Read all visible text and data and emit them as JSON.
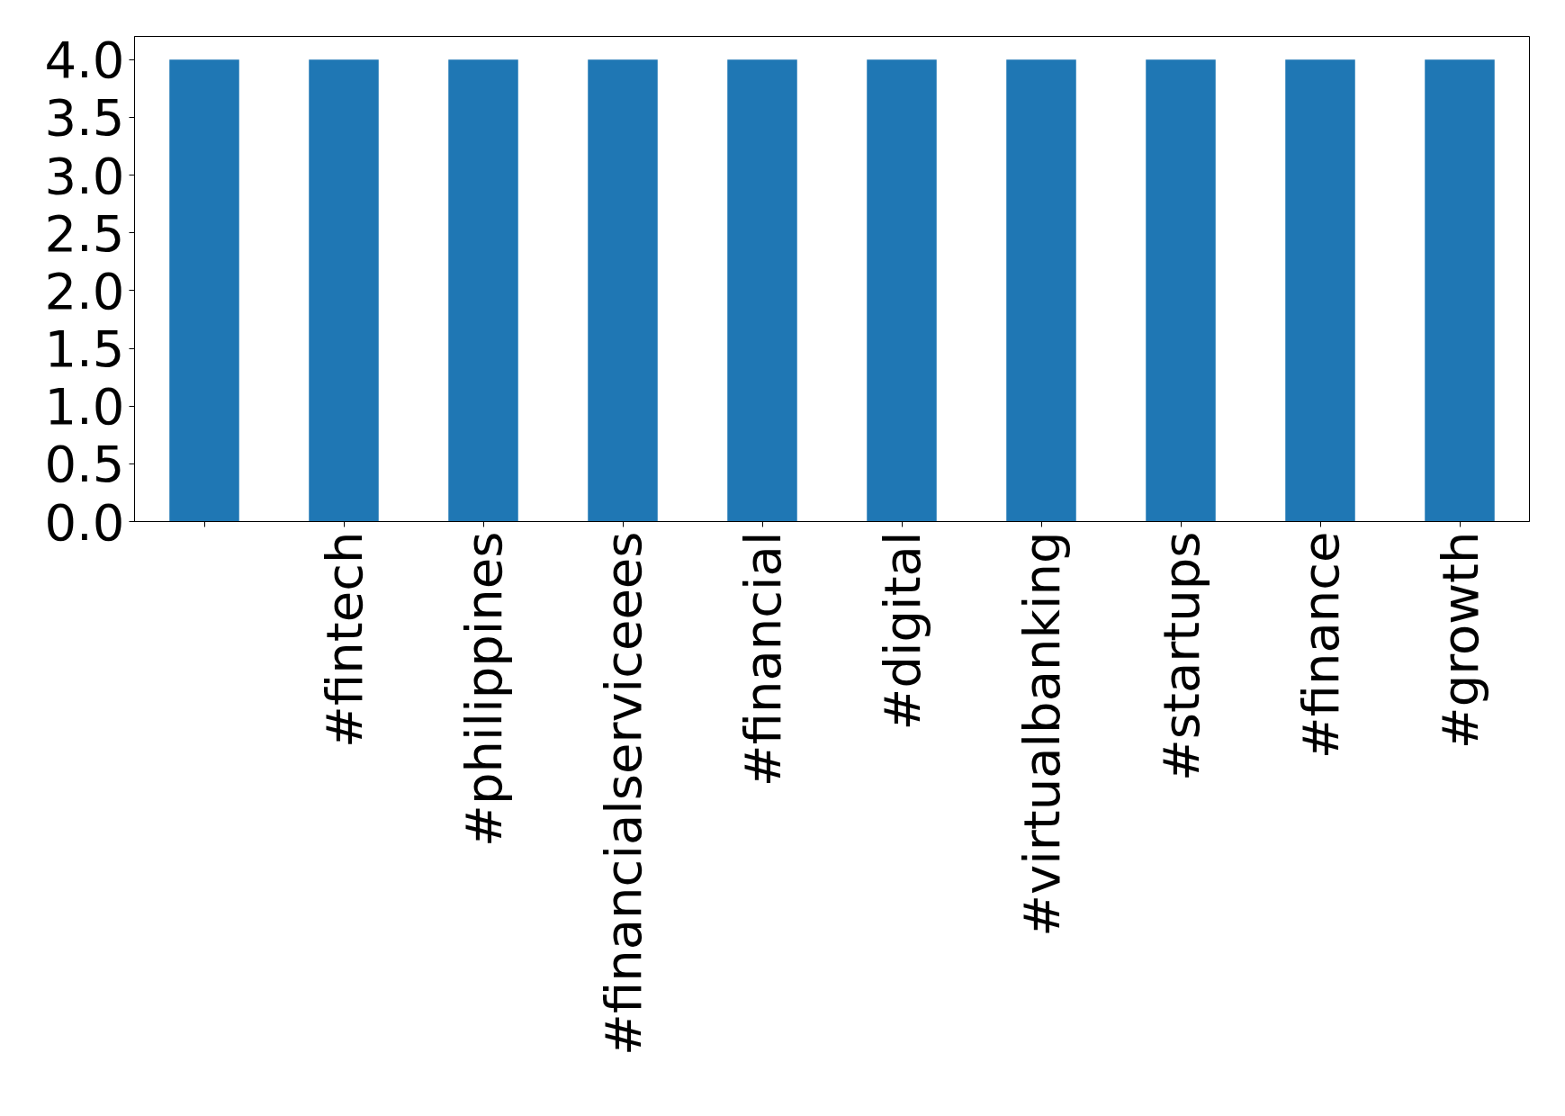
{
  "chart_data": {
    "type": "bar",
    "categories": [
      null,
      "#fintech",
      "#philippines",
      "#financialserviceees",
      "#financial",
      "#digital",
      "#virtualbanking",
      "#startups",
      "#finance",
      "#growth"
    ],
    "values": [
      4,
      4,
      4,
      4,
      4,
      4,
      4,
      4,
      4,
      4
    ],
    "color": "#1f77b4",
    "ylim": [
      0,
      4.2
    ],
    "yticks": [
      {
        "value": 0,
        "label": "0.0"
      },
      {
        "value": 0.5,
        "label": "0.5"
      },
      {
        "value": 1,
        "label": "1.0"
      },
      {
        "value": 1.5,
        "label": "1.5"
      },
      {
        "value": 2,
        "label": "2.0"
      },
      {
        "value": 2.5,
        "label": "2.5"
      },
      {
        "value": 3,
        "label": "3.0"
      },
      {
        "value": 3.5,
        "label": "3.5"
      },
      {
        "value": 4,
        "label": "4.0"
      }
    ],
    "grid": false
  }
}
